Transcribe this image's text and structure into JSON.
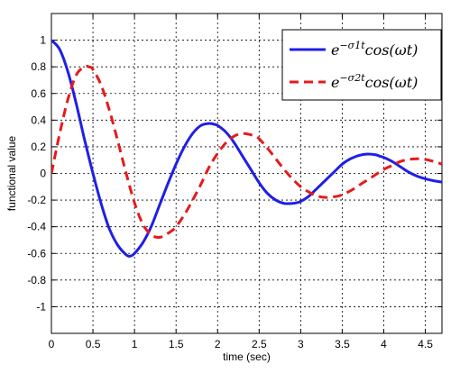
{
  "chart_data": {
    "type": "line",
    "title": "",
    "xlabel": "time (sec)",
    "ylabel": "functional value",
    "xlim": [
      0,
      4.7
    ],
    "ylim": [
      -1.2,
      1.2
    ],
    "xticks": [
      "0",
      "0.5",
      "1",
      "1.5",
      "2",
      "2.5",
      "3",
      "3.5",
      "4",
      "4.5"
    ],
    "xtick_values": [
      0,
      0.5,
      1,
      1.5,
      2,
      2.5,
      3,
      3.5,
      4,
      4.5
    ],
    "yticks": [
      "-1",
      "-0.8",
      "-0.6",
      "-0.4",
      "-0.2",
      "0",
      "0.2",
      "0.4",
      "0.6",
      "0.8",
      "1"
    ],
    "ytick_values": [
      -1,
      -0.8,
      -0.6,
      -0.4,
      -0.2,
      0,
      0.2,
      0.4,
      0.6,
      0.8,
      1
    ],
    "grid": true,
    "legend_position": "top-right",
    "series": [
      {
        "name": "e^{-σ1 t} cos(ωt)",
        "legend_base": "e",
        "legend_exponent": "−σ1t",
        "legend_rest": "cos(ωt)",
        "color": "#1f1fe6",
        "style": "solid",
        "x": [
          0,
          0.1,
          0.2,
          0.3,
          0.4,
          0.5,
          0.6,
          0.7,
          0.8,
          0.9,
          0.95,
          1.0,
          1.1,
          1.2,
          1.3,
          1.4,
          1.5,
          1.6,
          1.7,
          1.8,
          1.9,
          1.95,
          2.0,
          2.1,
          2.2,
          2.3,
          2.4,
          2.5,
          2.6,
          2.7,
          2.8,
          2.9,
          2.95,
          3.0,
          3.1,
          3.2,
          3.3,
          3.4,
          3.5,
          3.6,
          3.7,
          3.8,
          3.9,
          3.95,
          4.0,
          4.1,
          4.2,
          4.3,
          4.4,
          4.5,
          4.6,
          4.7
        ],
        "y": [
          1.0,
          0.93,
          0.76,
          0.52,
          0.25,
          0.0,
          -0.23,
          -0.42,
          -0.54,
          -0.61,
          -0.62,
          -0.6,
          -0.52,
          -0.4,
          -0.24,
          -0.08,
          0.07,
          0.2,
          0.3,
          0.36,
          0.375,
          0.37,
          0.36,
          0.31,
          0.23,
          0.13,
          0.03,
          -0.07,
          -0.15,
          -0.2,
          -0.225,
          -0.225,
          -0.22,
          -0.21,
          -0.17,
          -0.11,
          -0.05,
          0.01,
          0.07,
          0.11,
          0.135,
          0.145,
          0.14,
          0.13,
          0.12,
          0.09,
          0.05,
          0.01,
          -0.02,
          -0.04,
          -0.055,
          -0.065
        ]
      },
      {
        "name": "e^{-σ2 t} cos(ωt)",
        "legend_base": "e",
        "legend_exponent": "−σ2t",
        "legend_rest": "cos(ωt)",
        "color": "#e61a1a",
        "style": "dashed",
        "x": [
          0,
          0.1,
          0.2,
          0.3,
          0.4,
          0.45,
          0.5,
          0.6,
          0.7,
          0.8,
          0.9,
          1.0,
          1.1,
          1.2,
          1.3,
          1.4,
          1.45,
          1.5,
          1.6,
          1.7,
          1.8,
          1.9,
          2.0,
          2.1,
          2.2,
          2.3,
          2.4,
          2.45,
          2.5,
          2.6,
          2.7,
          2.8,
          2.9,
          3.0,
          3.1,
          3.2,
          3.3,
          3.4,
          3.45,
          3.5,
          3.6,
          3.7,
          3.8,
          3.9,
          4.0,
          4.1,
          4.2,
          4.3,
          4.4,
          4.5,
          4.6,
          4.7
        ],
        "y": [
          0.0,
          0.3,
          0.56,
          0.74,
          0.8,
          0.8,
          0.78,
          0.66,
          0.47,
          0.24,
          0.0,
          -0.22,
          -0.38,
          -0.46,
          -0.48,
          -0.45,
          -0.43,
          -0.4,
          -0.31,
          -0.2,
          -0.08,
          0.05,
          0.15,
          0.23,
          0.28,
          0.3,
          0.29,
          0.28,
          0.26,
          0.19,
          0.11,
          0.03,
          -0.04,
          -0.1,
          -0.14,
          -0.17,
          -0.18,
          -0.175,
          -0.17,
          -0.16,
          -0.13,
          -0.09,
          -0.05,
          -0.01,
          0.03,
          0.06,
          0.09,
          0.105,
          0.11,
          0.105,
          0.09,
          0.07
        ]
      }
    ]
  }
}
